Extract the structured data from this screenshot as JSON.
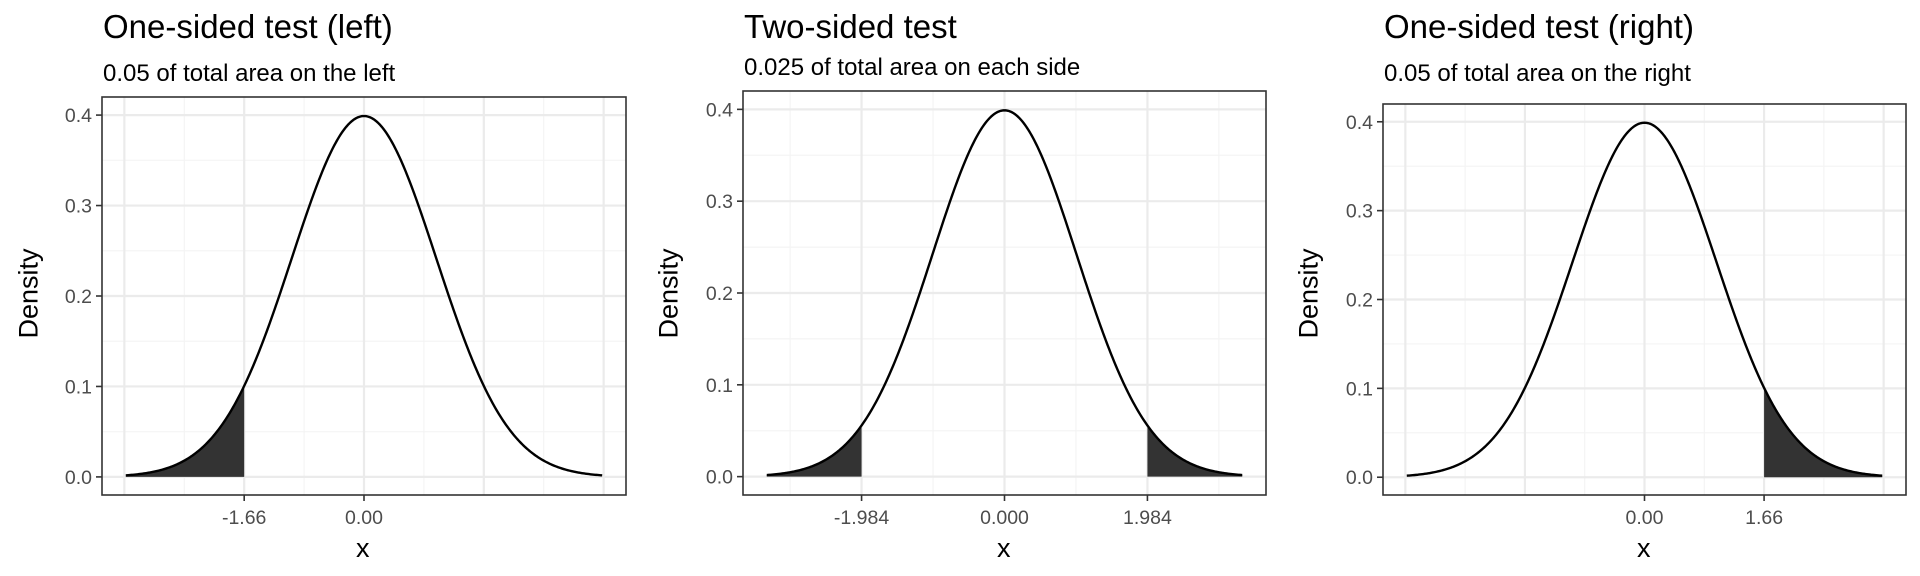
{
  "chart_data": [
    {
      "type": "area",
      "title": "One-sided test (left)",
      "subtitle": "0.05 of total area on the left",
      "xlabel": "x",
      "ylabel": "Density",
      "distribution": "standard normal",
      "xlim": [
        -3.3,
        3.3
      ],
      "ylim": [
        0,
        0.4
      ],
      "x_tick_labels": [
        {
          "value": -1.66,
          "label": "-1.66"
        },
        {
          "value": 0,
          "label": "0.00"
        }
      ],
      "y_tick_labels": [
        {
          "value": 0,
          "label": "0.0"
        },
        {
          "value": 0.1,
          "label": "0.1"
        },
        {
          "value": 0.2,
          "label": "0.2"
        },
        {
          "value": 0.3,
          "label": "0.3"
        },
        {
          "value": 0.4,
          "label": "0.4"
        }
      ],
      "shaded_regions": [
        [
          -3.3,
          -1.66
        ]
      ],
      "grid": true
    },
    {
      "type": "area",
      "title": "Two-sided test",
      "subtitle": "0.025 of total area on each side",
      "xlabel": "x",
      "ylabel": "Density",
      "distribution": "standard normal",
      "xlim": [
        -3.3,
        3.3
      ],
      "ylim": [
        0,
        0.4
      ],
      "x_tick_labels": [
        {
          "value": -1.984,
          "label": "-1.984"
        },
        {
          "value": 0,
          "label": "0.000"
        },
        {
          "value": 1.984,
          "label": "1.984"
        }
      ],
      "y_tick_labels": [
        {
          "value": 0,
          "label": "0.0"
        },
        {
          "value": 0.1,
          "label": "0.1"
        },
        {
          "value": 0.2,
          "label": "0.2"
        },
        {
          "value": 0.3,
          "label": "0.3"
        },
        {
          "value": 0.4,
          "label": "0.4"
        }
      ],
      "shaded_regions": [
        [
          -3.3,
          -1.984
        ],
        [
          1.984,
          3.3
        ]
      ],
      "grid": true
    },
    {
      "type": "area",
      "title": "One-sided test (right)",
      "subtitle": "0.05 of total area on the right",
      "xlabel": "x",
      "ylabel": "Density",
      "distribution": "standard normal",
      "xlim": [
        -3.3,
        3.3
      ],
      "ylim": [
        0,
        0.4
      ],
      "x_tick_labels": [
        {
          "value": 0,
          "label": "0.00"
        },
        {
          "value": 1.66,
          "label": "1.66"
        }
      ],
      "y_tick_labels": [
        {
          "value": 0,
          "label": "0.0"
        },
        {
          "value": 0.1,
          "label": "0.1"
        },
        {
          "value": 0.2,
          "label": "0.2"
        },
        {
          "value": 0.3,
          "label": "0.3"
        },
        {
          "value": 0.4,
          "label": "0.4"
        }
      ],
      "shaded_regions": [
        [
          1.66,
          3.3
        ]
      ],
      "grid": true
    }
  ],
  "colors": {
    "curve": "#000000",
    "shade": "#333333",
    "grid_major": "#ebebeb",
    "grid_minor": "#f4f4f4",
    "border": "#333333",
    "tick_text": "#4d4d4d"
  }
}
